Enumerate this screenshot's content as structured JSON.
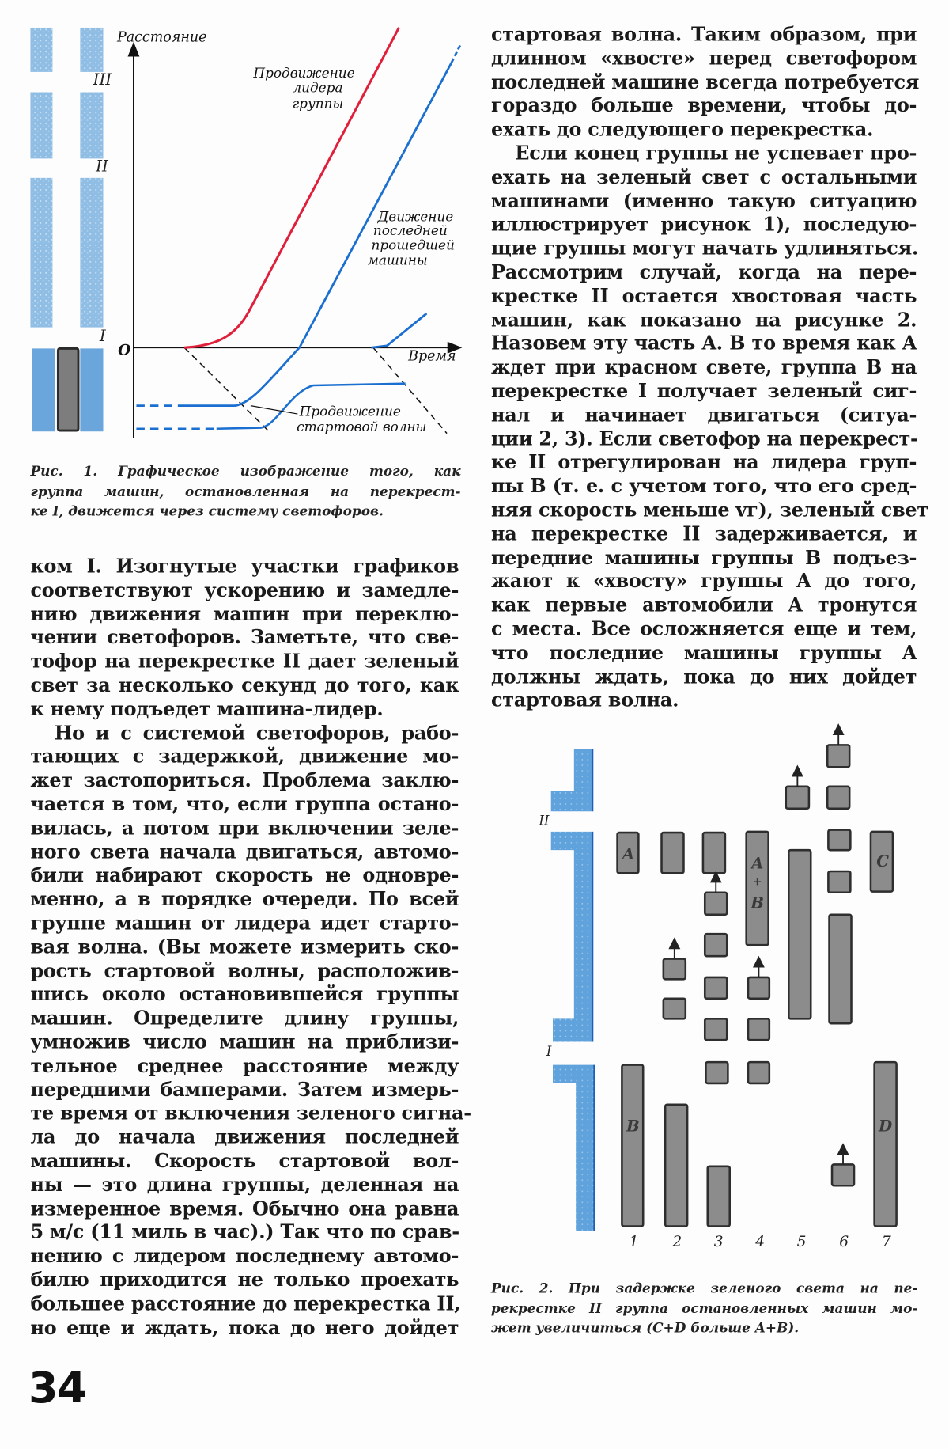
{
  "figure1": {
    "y_axis_label": "Расстояние",
    "x_axis_label": "Время",
    "origin_label": "O",
    "intersections": [
      "III",
      "II",
      "I"
    ],
    "leader_label": [
      "Продвижение",
      "лидера",
      "группы"
    ],
    "last_car_label": [
      "Движение",
      "последней",
      "прошедшей",
      "машины"
    ],
    "wave_label": [
      "Продвижение",
      "стартовой волны"
    ],
    "colors": {
      "leader": "#e0203a",
      "cars": "#1a6fd0",
      "road": "#7fb4e0",
      "wave": "#111111"
    },
    "caption": [
      "Рис. 1. Графическое изображение того, как",
      "группа машин, остановленная на перекрест-",
      "ке I, движется через систему светофоров."
    ]
  },
  "left_column": {
    "paragraphs": [
      [
        "ком I. Изогнутые участки графиков",
        "соответствуют ускорению и замедле-",
        "нию движения машин при переклю-",
        "чении светофоров. Заметьте, что све-",
        "тофор на перекрестке II дает зеленый",
        "свет за несколько секунд до того, как",
        "к нему подъедет машина-лидер."
      ],
      [
        "Но и с системой светофоров, рабо-",
        "тающих с задержкой, движение мо-",
        "жет застопориться. Проблема заклю-",
        "чается в том, что, если группа остано-",
        "вилась, а потом при включении зеле-",
        "ного света начала двигаться, автомо-",
        "били набирают скорость не одновре-",
        "менно, а в порядке очереди. По всей",
        "группе машин от лидера идет старто-",
        "вая волна. (Вы можете измерить ско-",
        "рость стартовой волны, расположив-",
        "шись около остановившейся группы",
        "машин. Определите длину группы,",
        "умножив число машин на приблизи-",
        "тельное среднее расстояние между",
        "передними бамперами. Затем измерь-",
        "те время от включения зеленого сигна-",
        "ла до начала движения последней",
        "машины. Скорость стартовой вол-",
        "ны — это длина группы, деленная на",
        "измеренное время. Обычно она равна",
        "5 м/с (11 миль в час).) Так что по срав-",
        "нению с лидером последнему автомо-",
        "билю приходится не только проехать",
        "большее расстояние до перекрестка II,",
        "но еще и ждать, пока до него дойдет"
      ]
    ]
  },
  "right_column": {
    "paragraphs": [
      [
        "стартовая волна. Таким образом, при",
        "длинном «хвосте» перед светофором",
        "последней машине всегда потребуется",
        "гораздо больше времени, чтобы до-",
        "ехать до следующего перекрестка."
      ],
      [
        "Если конец группы не успевает про-",
        "ехать на зеленый свет с остальными",
        "машинами (именно такую ситуацию",
        "иллюстрирует рисунок 1), последую-",
        "щие группы могут начать удлиняться.",
        "Рассмотрим случай, когда на пере-",
        "крестке II остается хвостовая часть",
        "машин, как показано на рисунке 2.",
        "Назовем эту часть A. В то время как A",
        "ждет при красном свете, группа B на",
        "перекрестке I получает зеленый сиг-",
        "нал и начинает двигаться (ситуа-",
        "ции 2, 3). Если светофор на перекрест-",
        "ке II отрегулирован на лидера груп-",
        "пы B (т. е. с учетом того, что его сред-",
        "няя скорость меньше vг), зеленый свет",
        "на перекрестке II задерживается, и",
        "передние машины группы B подъез-",
        "жают к «хвосту» группы A до того,",
        "как первые автомобили A тронутся",
        "с места. Все осложняется еще и тем,",
        "что последние машины группы A",
        "должны ждать, пока до них дойдет",
        "стартовая волна."
      ]
    ]
  },
  "figure2": {
    "intersections": [
      "II",
      "I"
    ],
    "group_labels": {
      "A": "A",
      "B": "B",
      "AB": [
        "A",
        "+",
        "B"
      ],
      "C": "C",
      "D": "D"
    },
    "situations": [
      "1",
      "2",
      "3",
      "4",
      "5",
      "6",
      "7"
    ],
    "caption": [
      "Рис. 2. При задержке зеленого света на пе-",
      "рекрестке II группа остановленных машин мо-",
      "жет увеличиться (C+D больше A+B)."
    ]
  },
  "page_number": "34"
}
